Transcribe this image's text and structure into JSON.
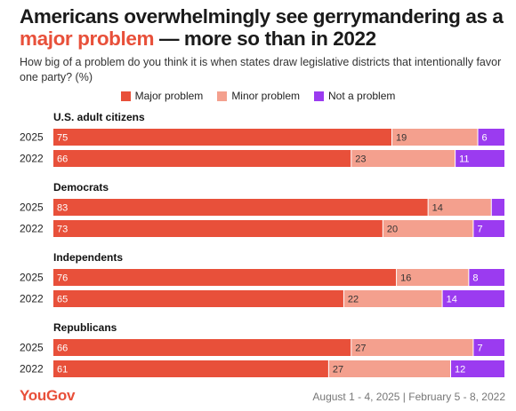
{
  "title_part1": "Americans overwhelmingly see gerrymandering as a",
  "title_highlight": "major problem",
  "title_part2": " — more so than in 2022",
  "subtitle": "How big of a problem do you think it is when states draw legislative districts that intentionally favor one party? (%)",
  "footer": {
    "logo": "YouGov",
    "dates": "August 1 - 4, 2025 | February 5 - 8, 2022"
  },
  "colors": {
    "major": "#e8503a",
    "minor": "#f4a08e",
    "not": "#9b3bf0",
    "highlight": "#e8503a"
  },
  "chart_data": {
    "type": "bar",
    "orientation": "horizontal",
    "stacked": true,
    "xlim": [
      0,
      100
    ],
    "legend": "top-center",
    "series": [
      {
        "name": "Major problem",
        "key": "major"
      },
      {
        "name": "Minor problem",
        "key": "minor"
      },
      {
        "name": "Not a problem",
        "key": "not"
      }
    ],
    "groups": [
      {
        "name": "U.S. adult citizens",
        "rows": [
          {
            "year": "2025",
            "values": [
              75,
              19,
              6
            ],
            "labels": [
              "75",
              "19",
              "6"
            ]
          },
          {
            "year": "2022",
            "values": [
              66,
              23,
              11
            ],
            "labels": [
              "66",
              "23",
              "11"
            ]
          }
        ]
      },
      {
        "name": "Democrats",
        "rows": [
          {
            "year": "2025",
            "values": [
              83,
              14,
              3
            ],
            "labels": [
              "83",
              "14",
              ""
            ]
          },
          {
            "year": "2022",
            "values": [
              73,
              20,
              7
            ],
            "labels": [
              "73",
              "20",
              "7"
            ]
          }
        ]
      },
      {
        "name": "Independents",
        "rows": [
          {
            "year": "2025",
            "values": [
              76,
              16,
              8
            ],
            "labels": [
              "76",
              "16",
              "8"
            ]
          },
          {
            "year": "2022",
            "values": [
              65,
              22,
              14
            ],
            "labels": [
              "65",
              "22",
              "14"
            ]
          }
        ]
      },
      {
        "name": "Republicans",
        "rows": [
          {
            "year": "2025",
            "values": [
              66,
              27,
              7
            ],
            "labels": [
              "66",
              "27",
              "7"
            ]
          },
          {
            "year": "2022",
            "values": [
              61,
              27,
              12
            ],
            "labels": [
              "61",
              "27",
              "12"
            ]
          }
        ]
      }
    ]
  }
}
